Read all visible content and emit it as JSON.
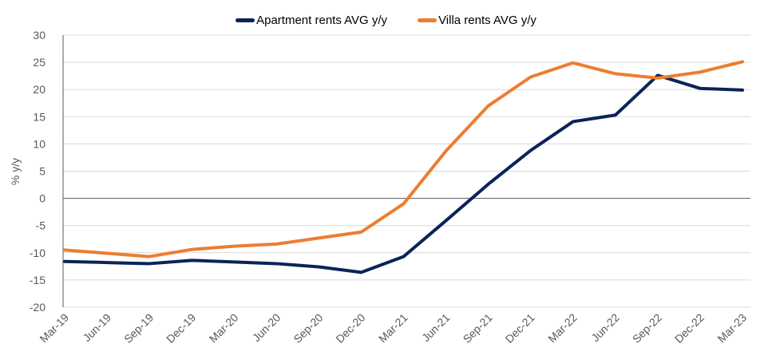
{
  "chart_data": {
    "type": "line",
    "title": "",
    "xlabel": "",
    "ylabel": "% y/y",
    "ylim": [
      -20,
      30
    ],
    "yticks": [
      30,
      25,
      20,
      15,
      10,
      5,
      0,
      -5,
      -10,
      -15,
      -20
    ],
    "grid": true,
    "legend_position": "top-center",
    "categories": [
      "Mar-19",
      "Jun-19",
      "Sep-19",
      "Dec-19",
      "Mar-20",
      "Jun-20",
      "Sep-20",
      "Dec-20",
      "Mar-21",
      "Jun-21",
      "Sep-21",
      "Dec-21",
      "Mar-22",
      "Jun-22",
      "Sep-22",
      "Dec-22",
      "Mar-23"
    ],
    "series": [
      {
        "name": "Apartment rents AVG y/y",
        "color": "#0b2359",
        "values": [
          -11.6,
          -11.8,
          -12.0,
          -11.4,
          -11.7,
          -12.0,
          -12.6,
          -13.6,
          -10.7,
          -4.1,
          2.6,
          8.8,
          14.1,
          15.3,
          22.6,
          20.2,
          19.9
        ]
      },
      {
        "name": "Villa rents AVG y/y",
        "color": "#ed7d31",
        "values": [
          -9.5,
          -10.1,
          -10.7,
          -9.4,
          -8.8,
          -8.4,
          -7.3,
          -6.2,
          -1.0,
          8.7,
          17.0,
          22.3,
          24.9,
          22.9,
          22.1,
          23.2,
          25.1
        ]
      }
    ]
  }
}
